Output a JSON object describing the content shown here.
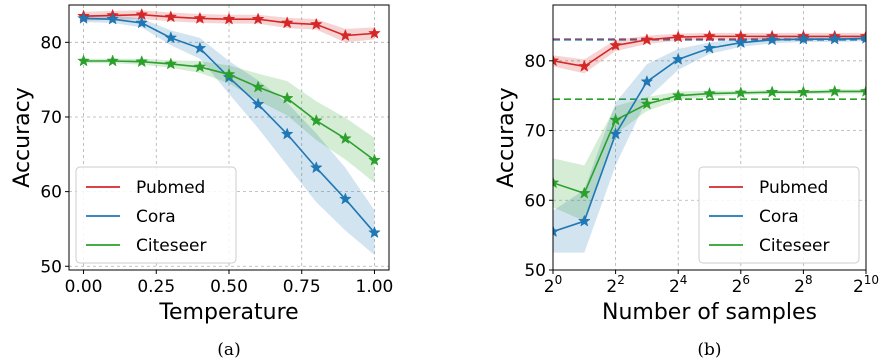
{
  "chart_data": [
    {
      "type": "line",
      "caption": "(a)",
      "xlabel": "Temperature",
      "ylabel": "Accuracy",
      "xlim": [
        -0.05,
        1.05
      ],
      "ylim": [
        49.5,
        85
      ],
      "xticks": [
        0.0,
        0.25,
        0.5,
        0.75,
        1.0
      ],
      "xtick_labels": [
        "0.00",
        "0.25",
        "0.50",
        "0.75",
        "1.00"
      ],
      "yticks": [
        50,
        60,
        70,
        80
      ],
      "ytick_labels": [
        "50",
        "60",
        "70",
        "80"
      ],
      "grid": true,
      "legend_position": "lower-left",
      "x": [
        0.0,
        0.1,
        0.2,
        0.3,
        0.4,
        0.5,
        0.6,
        0.7,
        0.8,
        0.9,
        1.0
      ],
      "series": [
        {
          "name": "Pubmed",
          "color": "#d62728",
          "values": [
            83.5,
            83.6,
            83.7,
            83.4,
            83.2,
            83.1,
            83.1,
            82.6,
            82.4,
            80.9,
            81.2
          ],
          "band": [
            0.6,
            0.6,
            0.6,
            0.6,
            0.6,
            0.6,
            0.6,
            0.7,
            0.7,
            0.9,
            0.8
          ]
        },
        {
          "name": "Cora",
          "color": "#1f77b4",
          "values": [
            83.2,
            83.1,
            82.6,
            80.6,
            79.2,
            75.3,
            71.7,
            67.7,
            63.2,
            59.0,
            54.5
          ],
          "band": [
            0.5,
            0.5,
            0.6,
            1.0,
            1.4,
            2.2,
            3.2,
            4.2,
            4.6,
            4.2,
            3.0
          ]
        },
        {
          "name": "Citeseer",
          "color": "#2ca02c",
          "values": [
            77.5,
            77.5,
            77.4,
            77.1,
            76.7,
            75.7,
            74.0,
            72.5,
            69.5,
            67.1,
            64.2
          ],
          "band": [
            0.3,
            0.3,
            0.4,
            0.5,
            0.8,
            1.2,
            1.8,
            2.3,
            2.6,
            2.8,
            3.0
          ]
        }
      ]
    },
    {
      "type": "line",
      "caption": "(b)",
      "xlabel": "Number of samples",
      "ylabel": "Accuracy",
      "x_scale": "log2",
      "xlim_exponent": [
        0,
        10
      ],
      "ylim": [
        50,
        88
      ],
      "xticks_exponent": [
        0,
        2,
        4,
        6,
        8,
        10
      ],
      "xtick_base": "2",
      "xtick_exponents": [
        "0",
        "2",
        "4",
        "6",
        "8",
        "10"
      ],
      "yticks": [
        50,
        60,
        70,
        80
      ],
      "ytick_labels": [
        "50",
        "60",
        "70",
        "80"
      ],
      "grid": true,
      "legend_position": "lower-right",
      "x_exponent": [
        0,
        1,
        2,
        3,
        4,
        5,
        6,
        7,
        8,
        9,
        10
      ],
      "series": [
        {
          "name": "Pubmed",
          "color": "#d62728",
          "baseline": 83.1,
          "values": [
            80.0,
            79.2,
            82.2,
            83.0,
            83.4,
            83.5,
            83.5,
            83.5,
            83.5,
            83.5,
            83.5
          ],
          "band": [
            0.8,
            1.0,
            0.8,
            0.6,
            0.5,
            0.5,
            0.5,
            0.5,
            0.5,
            0.5,
            0.5
          ]
        },
        {
          "name": "Cora",
          "color": "#1f77b4",
          "baseline": 83.0,
          "values": [
            55.5,
            57.0,
            69.5,
            77.0,
            80.2,
            81.8,
            82.6,
            83.0,
            83.1,
            83.1,
            83.2
          ],
          "band": [
            3.0,
            4.5,
            4.5,
            2.5,
            1.5,
            0.8,
            0.6,
            0.5,
            0.4,
            0.4,
            0.4
          ]
        },
        {
          "name": "Citeseer",
          "color": "#2ca02c",
          "baseline": 74.5,
          "values": [
            62.5,
            61.0,
            71.5,
            73.8,
            75.0,
            75.3,
            75.4,
            75.5,
            75.5,
            75.6,
            75.6
          ],
          "band": [
            3.5,
            4.0,
            2.0,
            1.0,
            0.6,
            0.4,
            0.3,
            0.3,
            0.3,
            0.3,
            0.3
          ]
        }
      ]
    }
  ]
}
